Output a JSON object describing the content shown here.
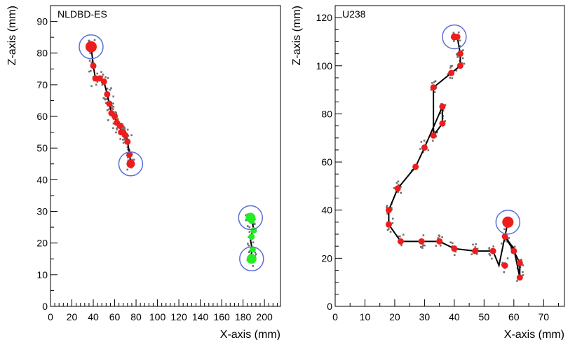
{
  "chart_data": [
    {
      "type": "scatter",
      "title": "NLDBD-ES",
      "xlabel": "X-axis (mm)",
      "ylabel": "Z-axis (mm)",
      "xlim": [
        0,
        215
      ],
      "ylim": [
        0,
        95
      ],
      "xticks": [
        0,
        20,
        40,
        60,
        80,
        100,
        120,
        140,
        160,
        180,
        200
      ],
      "yticks": [
        0,
        10,
        20,
        30,
        40,
        50,
        60,
        70,
        80,
        90
      ],
      "grid": false,
      "colors": {
        "track": "#000000",
        "hit": "#ee1c1c",
        "hit_alt": "#22ee22",
        "spread": "#707070",
        "circle": "#5b6fd6"
      },
      "series": [
        {
          "role": "track-a",
          "x": [
            38,
            40,
            42,
            46,
            50,
            53,
            55,
            57,
            60,
            62,
            65,
            66,
            68,
            70,
            72,
            74,
            75,
            73
          ],
          "y": [
            82,
            76,
            72,
            72,
            71,
            67,
            64,
            61,
            60,
            58,
            57,
            55,
            55,
            54,
            52,
            48,
            45,
            45
          ]
        },
        {
          "role": "hits-a",
          "x": [
            38,
            40,
            42,
            46,
            50,
            53,
            55,
            57,
            60,
            62,
            65,
            66,
            68,
            70,
            72,
            74,
            75
          ],
          "y": [
            82,
            76,
            72,
            72,
            71,
            67,
            64,
            61,
            60,
            58,
            57,
            55,
            55,
            54,
            52,
            48,
            45
          ]
        },
        {
          "role": "track-b",
          "x": [
            186,
            188,
            189,
            190,
            188,
            187,
            188,
            189,
            188,
            187,
            188
          ],
          "y": [
            28,
            27,
            26,
            24,
            23,
            21,
            19,
            18,
            17,
            15,
            14
          ]
        },
        {
          "role": "hits-b",
          "x": [
            186,
            188,
            190,
            188,
            189,
            188
          ],
          "y": [
            28,
            27,
            24,
            22,
            18,
            15
          ]
        },
        {
          "role": "endpoints",
          "x": [
            38,
            75,
            187,
            188
          ],
          "y": [
            82,
            45,
            28,
            15
          ]
        }
      ]
    },
    {
      "type": "scatter",
      "title": "U238",
      "xlabel": "X-axis (mm)",
      "ylabel": "Z-axis (mm)",
      "xlim": [
        0,
        77
      ],
      "ylim": [
        0,
        125
      ],
      "xticks": [
        0,
        10,
        20,
        30,
        40,
        50,
        60,
        70
      ],
      "yticks": [
        0,
        20,
        40,
        60,
        80,
        100,
        120
      ],
      "grid": false,
      "colors": {
        "track": "#000000",
        "hit": "#ee1c1c",
        "spread": "#707070",
        "circle": "#5b6fd6"
      },
      "series": [
        {
          "role": "track",
          "x": [
            41,
            42,
            42,
            39,
            33,
            33,
            36,
            36,
            30,
            27,
            21,
            18,
            18,
            22,
            29,
            35,
            40,
            47,
            53,
            55,
            57,
            60,
            62,
            62,
            60,
            57,
            58
          ],
          "y": [
            112,
            105,
            100,
            97,
            91,
            71,
            76,
            83,
            66,
            58,
            49,
            40,
            34,
            27,
            27,
            27,
            24,
            23,
            23,
            17,
            29,
            23,
            18,
            12,
            24,
            29,
            35
          ]
        },
        {
          "role": "hits",
          "x": [
            41,
            42,
            42,
            39,
            33,
            33,
            36,
            36,
            30,
            27,
            21,
            18,
            18,
            22,
            29,
            35,
            40,
            47,
            53,
            57,
            60,
            62,
            62,
            57
          ],
          "y": [
            112,
            105,
            100,
            97,
            91,
            71,
            76,
            83,
            66,
            58,
            49,
            40,
            34,
            27,
            27,
            27,
            24,
            23,
            23,
            17,
            23,
            18,
            12,
            29
          ]
        },
        {
          "role": "endpoints",
          "x": [
            40,
            58
          ],
          "y": [
            112,
            35
          ]
        }
      ]
    }
  ]
}
